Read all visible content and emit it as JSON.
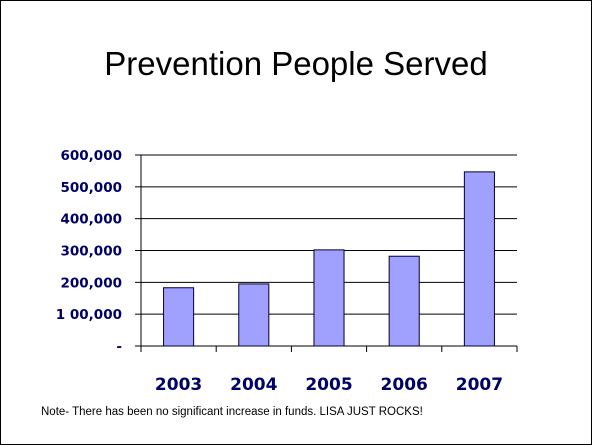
{
  "slide": {
    "title": "Prevention People Served",
    "note": "Note- There has been no significant increase in funds.  LISA JUST ROCKS!"
  },
  "colors": {
    "bar_fill": "#a0a0ff",
    "bar_stroke": "#000033",
    "axis_text": "#000066",
    "gridline": "#000000"
  },
  "chart_data": {
    "type": "bar",
    "title": "",
    "xlabel": "",
    "ylabel": "",
    "categories": [
      "2003",
      "2004",
      "2005",
      "2006",
      "2007"
    ],
    "values": [
      183000,
      195000,
      302000,
      282000,
      547000
    ],
    "ylim": [
      0,
      600000
    ],
    "ytick_values": [
      0,
      100000,
      200000,
      300000,
      400000,
      500000,
      600000
    ],
    "ytick_labels": [
      "-",
      "1 00,000",
      "200,000",
      "300,000",
      "400,000",
      "500,000",
      "600,000"
    ],
    "grid": true,
    "legend": "none"
  }
}
